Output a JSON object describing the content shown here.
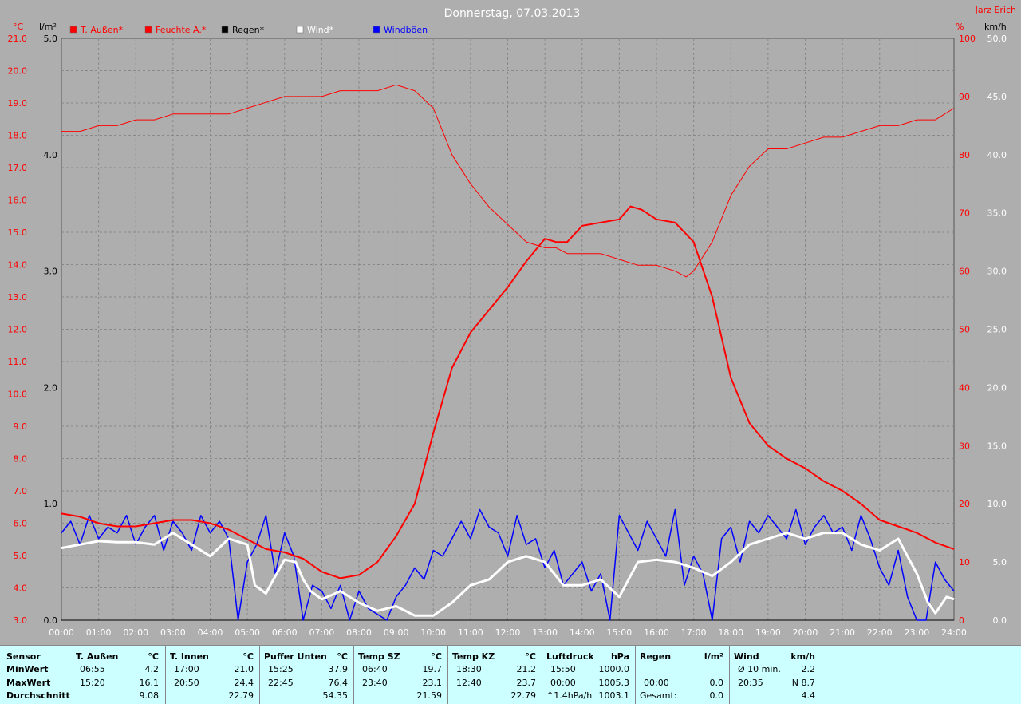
{
  "title": "Donnerstag, 07.03.2013",
  "station": "Jarz Erich",
  "colors": {
    "temp": "#ff0000",
    "humidity": "#ff0000",
    "rain": "#000000",
    "wind": "#ffffff",
    "gust": "#0000ff",
    "grid": "#888888",
    "plot_bg": "#aeaeae"
  },
  "legend": [
    {
      "label": "T. Außen*",
      "color": "#ff0000"
    },
    {
      "label": "Feuchte A.*",
      "color": "#ff0000"
    },
    {
      "label": "Regen*",
      "color": "#000000"
    },
    {
      "label": "Wind*",
      "color": "#ffffff"
    },
    {
      "label": "Windböen",
      "color": "#0000ff"
    }
  ],
  "chart_data": {
    "type": "line",
    "title": "Donnerstag, 07.03.2013",
    "x_ticks": [
      "00:00",
      "01:00",
      "02:00",
      "03:00",
      "04:00",
      "05:00",
      "06:00",
      "07:00",
      "08:00",
      "09:00",
      "10:00",
      "11:00",
      "12:00",
      "13:00",
      "14:00",
      "15:00",
      "16:00",
      "17:00",
      "18:00",
      "19:00",
      "20:00",
      "21:00",
      "22:00",
      "23:00",
      "24:00"
    ],
    "axes": {
      "temp": {
        "unit": "°C",
        "range": [
          3.0,
          21.0
        ],
        "ticks": [
          "3.0",
          "4.0",
          "5.0",
          "6.0",
          "7.0",
          "8.0",
          "9.0",
          "10.0",
          "11.0",
          "12.0",
          "13.0",
          "14.0",
          "15.0",
          "16.0",
          "17.0",
          "18.0",
          "19.0",
          "20.0",
          "21.0"
        ]
      },
      "rain": {
        "unit": "l/m²",
        "range": [
          0.0,
          5.0
        ],
        "ticks": [
          "0.0",
          "1.0",
          "2.0",
          "3.0",
          "4.0",
          "5.0"
        ]
      },
      "humidity": {
        "unit": "%",
        "range": [
          0,
          100
        ],
        "ticks": [
          "0",
          "10",
          "20",
          "30",
          "40",
          "50",
          "60",
          "70",
          "80",
          "90",
          "100"
        ]
      },
      "wind": {
        "unit": "km/h",
        "range": [
          0.0,
          50.0
        ],
        "ticks": [
          "0.0",
          "5.0",
          "10.0",
          "15.0",
          "20.0",
          "25.0",
          "30.0",
          "35.0",
          "40.0",
          "45.0",
          "50.0"
        ]
      }
    },
    "grid": true,
    "legend_position": "top",
    "series": [
      {
        "name": "T. Außen*",
        "axis": "temp",
        "x": [
          0,
          0.5,
          1,
          1.5,
          2,
          2.5,
          3,
          3.5,
          4,
          4.5,
          5,
          5.5,
          6,
          6.5,
          7,
          7.5,
          8,
          8.5,
          9,
          9.5,
          10,
          10.5,
          11,
          11.5,
          12,
          12.5,
          13,
          13.3,
          13.6,
          14,
          14.5,
          15,
          15.3,
          15.6,
          16,
          16.5,
          17,
          17.5,
          18,
          18.5,
          19,
          19.5,
          20,
          20.5,
          21,
          21.5,
          22,
          22.5,
          23,
          23.5,
          24
        ],
        "y": [
          6.3,
          6.2,
          6.0,
          5.9,
          5.9,
          6.0,
          6.1,
          6.1,
          6.0,
          5.8,
          5.5,
          5.2,
          5.1,
          4.9,
          4.5,
          4.3,
          4.4,
          4.8,
          5.6,
          6.6,
          8.8,
          10.8,
          11.9,
          12.6,
          13.3,
          14.1,
          14.8,
          14.7,
          14.7,
          15.2,
          15.3,
          15.4,
          15.8,
          15.7,
          15.4,
          15.3,
          14.7,
          13.0,
          10.5,
          9.1,
          8.4,
          8.0,
          7.7,
          7.3,
          7.0,
          6.6,
          6.1,
          5.9,
          5.7,
          5.4,
          5.2
        ]
      },
      {
        "name": "Feuchte A.*",
        "axis": "humidity",
        "x": [
          0,
          0.5,
          1,
          1.5,
          2,
          2.5,
          3,
          3.5,
          4,
          4.5,
          5,
          5.5,
          6,
          6.5,
          7,
          7.5,
          8,
          8.5,
          9,
          9.5,
          10,
          10.5,
          11,
          11.5,
          12,
          12.5,
          13,
          13.3,
          13.6,
          14,
          14.5,
          15,
          15.5,
          16,
          16.5,
          16.8,
          17,
          17.5,
          18,
          18.5,
          19,
          19.5,
          20,
          20.5,
          21,
          21.5,
          22,
          22.5,
          23,
          23.5,
          24
        ],
        "y": [
          84,
          84,
          85,
          85,
          86,
          86,
          87,
          87,
          87,
          87,
          88,
          89,
          90,
          90,
          90,
          91,
          91,
          91,
          92,
          91,
          88,
          80,
          75,
          71,
          68,
          65,
          64,
          64,
          63,
          63,
          63,
          62,
          61,
          61,
          60,
          59,
          60,
          65,
          73,
          78,
          81,
          81,
          82,
          83,
          83,
          84,
          85,
          85,
          86,
          86,
          88
        ]
      },
      {
        "name": "Wind*",
        "axis": "wind",
        "x": [
          0,
          0.5,
          1,
          1.5,
          2,
          2.5,
          3,
          3.5,
          4,
          4.5,
          5,
          5.2,
          5.5,
          5.7,
          6,
          6.3,
          6.5,
          6.7,
          7,
          7.3,
          7.5,
          8,
          8.5,
          9,
          9.5,
          10,
          10.5,
          11,
          11.5,
          12,
          12.5,
          13,
          13.5,
          14,
          14.5,
          15,
          15.5,
          16,
          16.5,
          17,
          17.5,
          18,
          18.5,
          19,
          19.5,
          20,
          20.5,
          21,
          21.5,
          22,
          22.5,
          23,
          23.3,
          23.5,
          23.8,
          24
        ],
        "y": [
          6.2,
          6.5,
          6.8,
          6.7,
          6.7,
          6.5,
          7.5,
          6.5,
          5.5,
          7.0,
          6.5,
          3.0,
          2.3,
          3.5,
          5.2,
          5.0,
          3.5,
          2.5,
          1.8,
          2.2,
          2.5,
          1.5,
          0.8,
          1.2,
          0.4,
          0.4,
          1.5,
          3.0,
          3.5,
          5.0,
          5.5,
          5.0,
          3.0,
          3.0,
          3.5,
          2.0,
          5.0,
          5.2,
          5.0,
          4.5,
          3.8,
          5.0,
          6.5,
          7.0,
          7.5,
          7.0,
          7.5,
          7.5,
          6.5,
          6.0,
          7.0,
          4.0,
          1.5,
          0.6,
          2.0,
          1.8
        ]
      },
      {
        "name": "Windböen",
        "axis": "wind",
        "x": [
          0,
          0.25,
          0.5,
          0.75,
          1,
          1.25,
          1.5,
          1.75,
          2,
          2.25,
          2.5,
          2.75,
          3,
          3.25,
          3.5,
          3.75,
          4,
          4.25,
          4.5,
          4.75,
          5,
          5.25,
          5.5,
          5.75,
          6,
          6.25,
          6.5,
          6.75,
          7,
          7.25,
          7.5,
          7.75,
          8,
          8.25,
          8.5,
          8.75,
          9,
          9.25,
          9.5,
          9.75,
          10,
          10.25,
          10.5,
          10.75,
          11,
          11.25,
          11.5,
          11.75,
          12,
          12.25,
          12.5,
          12.75,
          13,
          13.25,
          13.5,
          13.75,
          14,
          14.25,
          14.5,
          14.75,
          15,
          15.25,
          15.5,
          15.75,
          16,
          16.25,
          16.5,
          16.75,
          17,
          17.25,
          17.5,
          17.75,
          18,
          18.25,
          18.5,
          18.75,
          19,
          19.25,
          19.5,
          19.75,
          20,
          20.25,
          20.5,
          20.75,
          21,
          21.25,
          21.5,
          21.75,
          22,
          22.25,
          22.5,
          22.75,
          23,
          23.25,
          23.5,
          23.75,
          24
        ],
        "y": [
          7.5,
          8.5,
          6.5,
          9.0,
          7.0,
          8.0,
          7.5,
          9.0,
          6.5,
          8.0,
          9.0,
          6.0,
          8.5,
          7.5,
          6.0,
          9.0,
          7.5,
          8.5,
          7.0,
          0.0,
          5.0,
          6.5,
          9.0,
          4.0,
          7.5,
          5.5,
          0.0,
          3.0,
          2.5,
          1.0,
          3.0,
          0.0,
          2.5,
          1.0,
          0.5,
          0.0,
          2.0,
          3.0,
          4.5,
          3.5,
          6.0,
          5.5,
          7.0,
          8.5,
          7.0,
          9.5,
          8.0,
          7.5,
          5.5,
          9.0,
          6.5,
          7.0,
          4.5,
          6.0,
          3.0,
          4.0,
          5.0,
          2.5,
          4.0,
          0.0,
          9.0,
          7.5,
          6.0,
          8.5,
          7.0,
          5.5,
          9.5,
          3.0,
          5.5,
          4.0,
          0.0,
          7.0,
          8.0,
          5.0,
          8.5,
          7.5,
          9.0,
          8.0,
          7.0,
          9.5,
          6.5,
          8.0,
          9.0,
          7.5,
          8.0,
          6.0,
          9.0,
          7.0,
          4.5,
          3.0,
          6.0,
          2.0,
          0.0,
          0.0,
          5.0,
          3.5,
          2.5
        ]
      },
      {
        "name": "Regen*",
        "axis": "rain",
        "x": [
          0,
          24
        ],
        "y": [
          0.0,
          0.0
        ]
      }
    ]
  },
  "stats": {
    "row_labels": {
      "header": "Sensor",
      "min": "MinWert",
      "max": "MaxWert",
      "avg": "Durchschnitt"
    },
    "columns": [
      {
        "name": "T. Außen",
        "unit": "°C",
        "min_time": "06:55",
        "min": "4.2",
        "max_time": "15:20",
        "max": "16.1",
        "avg_label": "",
        "avg": "9.08"
      },
      {
        "name": "T. Innen",
        "unit": "°C",
        "min_time": "17:00",
        "min": "21.0",
        "max_time": "20:50",
        "max": "24.4",
        "avg_label": "",
        "avg": "22.79"
      },
      {
        "name": "Puffer Unten",
        "unit": "°C",
        "min_time": "15:25",
        "min": "37.9",
        "max_time": "22:45",
        "max": "76.4",
        "avg_label": "",
        "avg": "54.35"
      },
      {
        "name": "Temp SZ",
        "unit": "°C",
        "min_time": "06:40",
        "min": "19.7",
        "max_time": "23:40",
        "max": "23.1",
        "avg_label": "",
        "avg": "21.59"
      },
      {
        "name": "Temp KZ",
        "unit": "°C",
        "min_time": "18:30",
        "min": "21.2",
        "max_time": "12:40",
        "max": "23.7",
        "avg_label": "",
        "avg": "22.79"
      },
      {
        "name": "Luftdruck",
        "unit": "hPa",
        "min_time": "15:50",
        "min": "1000.0",
        "max_time": "00:00",
        "max": "1005.3",
        "avg_label": "^1.4hPa/h",
        "avg": "1003.1"
      },
      {
        "name": "Regen",
        "unit": "l/m²",
        "min_time": "",
        "min": "",
        "max_time": "00:00",
        "max": "0.0",
        "avg_label": "Gesamt:",
        "avg": "0.0"
      },
      {
        "name": "Wind",
        "unit": "km/h",
        "min_time": "Ø 10 min.",
        "min": "2.2",
        "max_time": "20:35",
        "max": "N 8.7",
        "avg_label": "",
        "avg": "4.4"
      }
    ]
  }
}
